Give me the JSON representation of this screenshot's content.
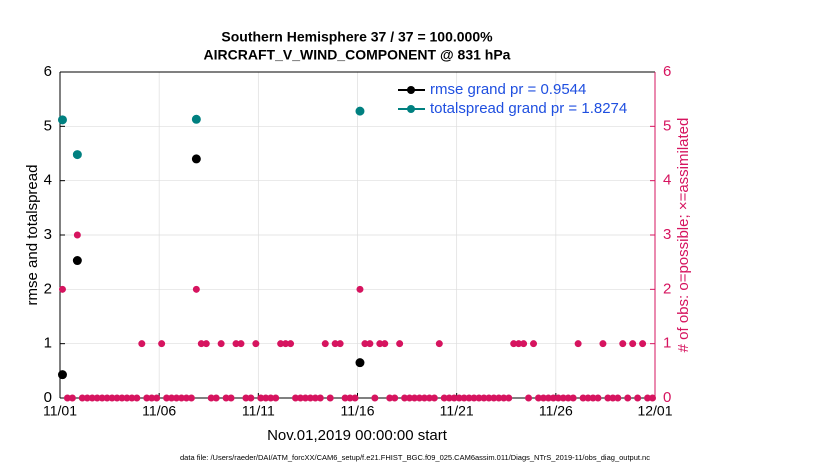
{
  "chart_data": {
    "type": "scatter",
    "title": "Southern Hemisphere 37 / 37 = 100.000%",
    "subtitle": "AIRCRAFT_V_WIND_COMPONENT @ 831 hPa",
    "x_label": "Nov.01,2019 00:00:00 start",
    "y_label": "rmse and totalspread",
    "y2_label": "# of obs: o=possible; ×=assimilated",
    "footnote": "data file: /Users/raeder/DAI/ATM_forcXX/CAM6_setup/f.e21.FHIST_BGC.f09_025.CAM6assim.011/Diags_NTrS_2019-11/obs_diag_output.nc",
    "xlim": [
      0,
      30
    ],
    "xticks": [
      {
        "value": 0,
        "label": "11/01"
      },
      {
        "value": 5,
        "label": "11/06"
      },
      {
        "value": 10,
        "label": "11/11"
      },
      {
        "value": 15,
        "label": "11/16"
      },
      {
        "value": 20,
        "label": "11/21"
      },
      {
        "value": 25,
        "label": "11/26"
      },
      {
        "value": 30,
        "label": "12/01"
      }
    ],
    "ylim": [
      0,
      6
    ],
    "yticks": [
      0,
      1,
      2,
      3,
      4,
      5,
      6
    ],
    "y2lim": [
      0,
      6
    ],
    "y2ticks": [
      0,
      1,
      2,
      3,
      4,
      5,
      6
    ],
    "grid": true,
    "legend": "upper right",
    "series": [
      {
        "name": "rmse grand pr = 0.9544",
        "color": "#000000",
        "x": [
          0.125,
          0.875,
          6.875,
          15.125
        ],
        "values": [
          0.43,
          2.53,
          4.4,
          0.65
        ]
      },
      {
        "name": "totalspread grand pr = 1.8274",
        "color": "#008080",
        "x": [
          0.125,
          0.875,
          6.875,
          15.125
        ],
        "values": [
          5.12,
          4.48,
          5.13,
          5.28
        ]
      },
      {
        "color": "#d6145f",
        "axis": "y2",
        "x": [
          0.125,
          0.375,
          0.625,
          0.875,
          1.125,
          1.375,
          1.625,
          1.875,
          2.125,
          2.375,
          2.625,
          2.875,
          3.125,
          3.375,
          3.625,
          3.875,
          4.125,
          4.375,
          4.625,
          4.875,
          5.125,
          5.375,
          5.625,
          5.875,
          6.125,
          6.375,
          6.625,
          6.875,
          7.125,
          7.375,
          7.625,
          7.875,
          8.125,
          8.375,
          8.625,
          8.875,
          9.125,
          9.375,
          9.625,
          9.875,
          10.125,
          10.375,
          10.625,
          10.875,
          11.125,
          11.375,
          11.625,
          11.875,
          12.125,
          12.375,
          12.625,
          12.875,
          13.125,
          13.375,
          13.625,
          13.875,
          14.125,
          14.375,
          14.625,
          14.875,
          15.125,
          15.375,
          15.625,
          15.875,
          16.125,
          16.375,
          16.625,
          16.875,
          17.125,
          17.375,
          17.625,
          17.875,
          18.125,
          18.375,
          18.625,
          18.875,
          19.125,
          19.375,
          19.625,
          19.875,
          20.125,
          20.375,
          20.625,
          20.875,
          21.125,
          21.375,
          21.625,
          21.875,
          22.125,
          22.375,
          22.625,
          22.875,
          23.125,
          23.375,
          23.625,
          23.875,
          24.125,
          24.375,
          24.625,
          24.875,
          25.125,
          25.375,
          25.625,
          25.875,
          26.125,
          26.375,
          26.625,
          26.875,
          27.125,
          27.375,
          27.625,
          27.875,
          28.125,
          28.375,
          28.625,
          28.875,
          29.125,
          29.375,
          29.625,
          29.875
        ],
        "values": [
          2,
          0,
          0,
          3,
          0,
          0,
          0,
          0,
          0,
          0,
          0,
          0,
          0,
          0,
          0,
          0,
          1,
          0,
          0,
          0,
          1,
          0,
          0,
          0,
          0,
          0,
          0,
          2,
          1,
          1,
          0,
          0,
          1,
          0,
          0,
          1,
          1,
          0,
          0,
          1,
          0,
          0,
          0,
          0,
          1,
          1,
          1,
          0,
          0,
          0,
          0,
          0,
          0,
          1,
          0,
          1,
          1,
          0,
          0,
          0,
          2,
          1,
          1,
          0,
          1,
          1,
          0,
          0,
          1,
          0,
          0,
          0,
          0,
          0,
          0,
          0,
          1,
          0,
          0,
          0,
          0,
          0,
          0,
          0,
          0,
          0,
          0,
          0,
          0,
          0,
          0,
          1,
          1,
          1,
          0,
          1,
          0,
          0,
          0,
          0,
          0,
          0,
          0,
          0,
          1,
          0,
          0,
          0,
          0,
          1,
          0,
          0,
          0,
          1,
          0,
          1,
          0,
          1,
          0,
          0
        ]
      }
    ]
  }
}
